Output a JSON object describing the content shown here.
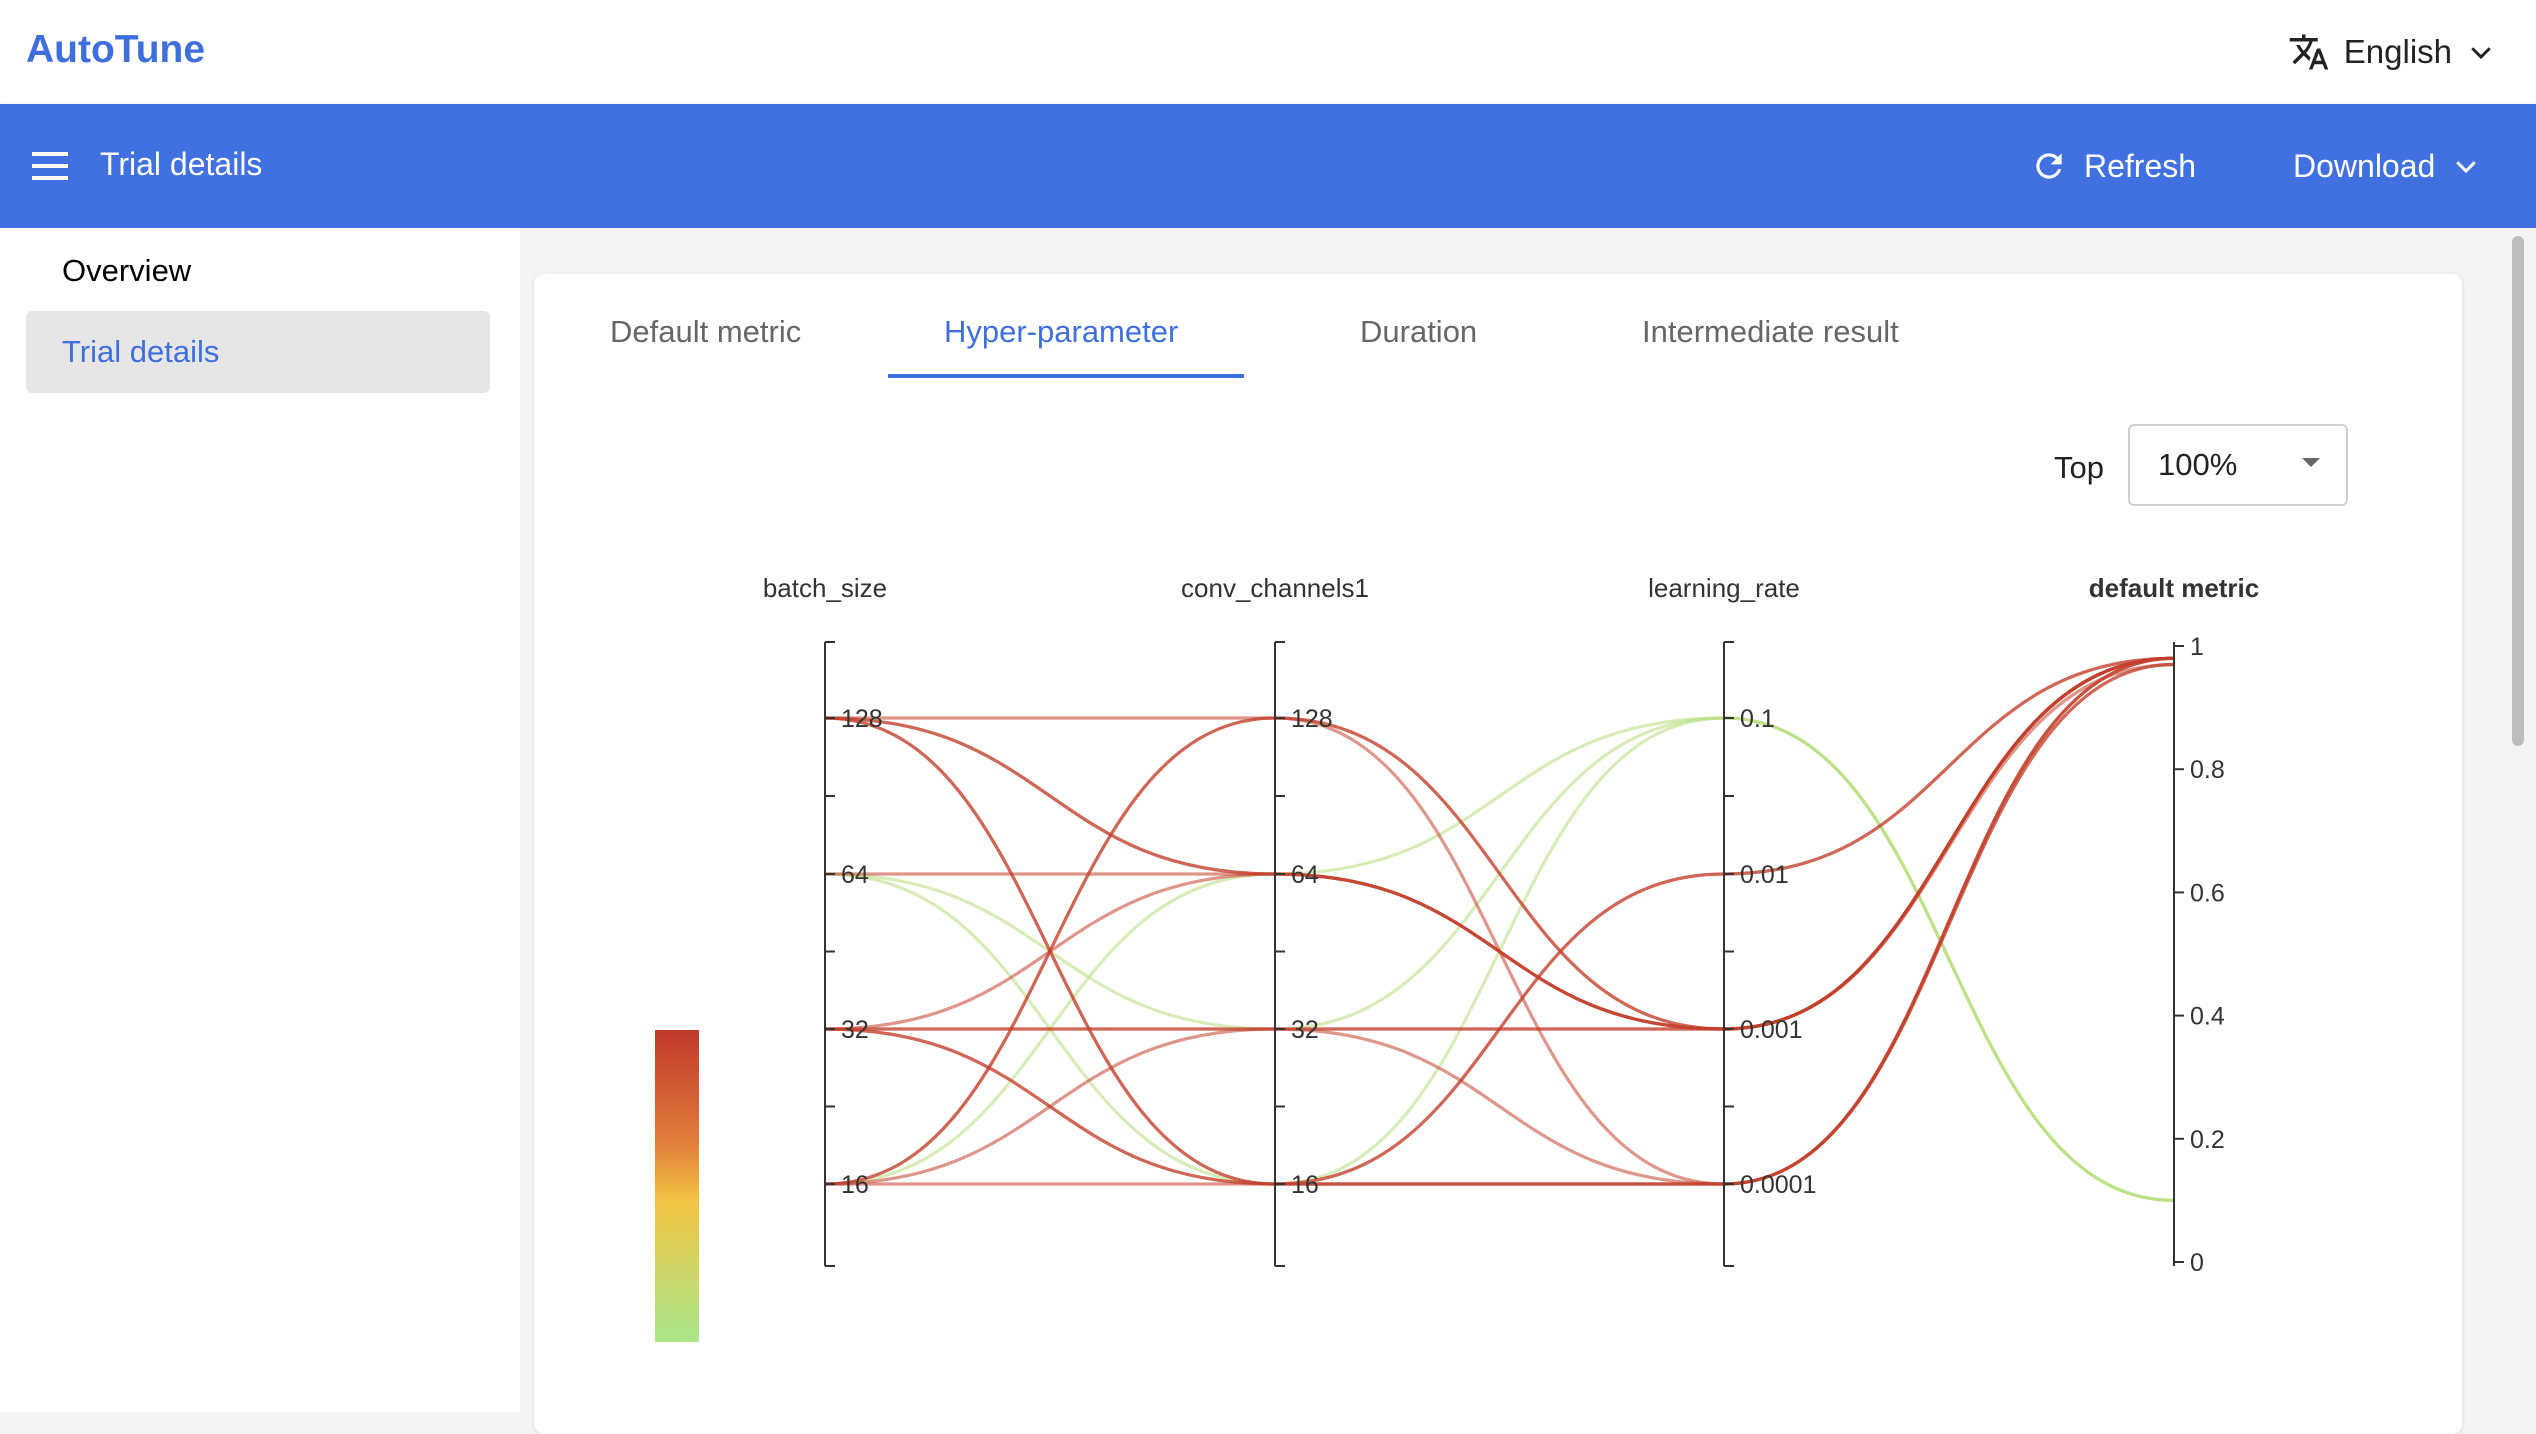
{
  "app": {
    "brand": "AutoTune"
  },
  "language": {
    "selected": "English",
    "icon": "translate-icon"
  },
  "header": {
    "title": "Trial details",
    "refresh_label": "Refresh",
    "download_label": "Download"
  },
  "sidebar": {
    "items": [
      {
        "label": "Overview"
      },
      {
        "label": "Trial details"
      }
    ]
  },
  "tabs": [
    {
      "label": "Default metric"
    },
    {
      "label": "Hyper-parameter"
    },
    {
      "label": "Duration"
    },
    {
      "label": "Intermediate result"
    }
  ],
  "top_filter": {
    "label": "Top",
    "value": "100%"
  },
  "colors": {
    "accent": "#4171e0",
    "link": "#3f6fdf",
    "high_metric": "#c0392b",
    "low_metric": "#a8e68a"
  },
  "chart_data": {
    "type": "parallel_coordinates",
    "axes": [
      {
        "name": "batch_size",
        "ticks": [
          "128",
          "64",
          "32",
          "16"
        ]
      },
      {
        "name": "conv_channels1",
        "ticks": [
          "128",
          "64",
          "32",
          "16"
        ]
      },
      {
        "name": "learning_rate",
        "ticks": [
          "0.1",
          "0.01",
          "0.001",
          "0.0001"
        ]
      },
      {
        "name": "default metric",
        "ticks": [
          "1",
          "0.8",
          "0.6",
          "0.4",
          "0.2",
          "0"
        ],
        "range": [
          0,
          1
        ]
      }
    ],
    "color_scale": {
      "metric": "default metric",
      "low": "#a8e68a",
      "mid": "#f3c443",
      "high": "#c0392b"
    },
    "trials": [
      {
        "batch_size": "128",
        "conv_channels1": "128",
        "learning_rate": "0.001",
        "default_metric": 0.98
      },
      {
        "batch_size": "128",
        "conv_channels1": "64",
        "learning_rate": "0.001",
        "default_metric": 0.98
      },
      {
        "batch_size": "128",
        "conv_channels1": "64",
        "learning_rate": "0.001",
        "default_metric": 0.97
      },
      {
        "batch_size": "128",
        "conv_channels1": "16",
        "learning_rate": "0.01",
        "default_metric": 0.98
      },
      {
        "batch_size": "128",
        "conv_channels1": "16",
        "learning_rate": "0.0001",
        "default_metric": 0.98
      },
      {
        "batch_size": "64",
        "conv_channels1": "64",
        "learning_rate": "0.001",
        "default_metric": 0.98
      },
      {
        "batch_size": "64",
        "conv_channels1": "32",
        "learning_rate": "0.1",
        "default_metric": 0.1
      },
      {
        "batch_size": "64",
        "conv_channels1": "16",
        "learning_rate": "0.1",
        "default_metric": 0.1
      },
      {
        "batch_size": "32",
        "conv_channels1": "64",
        "learning_rate": "0.001",
        "default_metric": 0.98
      },
      {
        "batch_size": "32",
        "conv_channels1": "32",
        "learning_rate": "0.001",
        "default_metric": 0.98
      },
      {
        "batch_size": "32",
        "conv_channels1": "32",
        "learning_rate": "0.0001",
        "default_metric": 0.97
      },
      {
        "batch_size": "32",
        "conv_channels1": "16",
        "learning_rate": "0.01",
        "default_metric": 0.98
      },
      {
        "batch_size": "32",
        "conv_channels1": "16",
        "learning_rate": "0.0001",
        "default_metric": 0.98
      },
      {
        "batch_size": "16",
        "conv_channels1": "128",
        "learning_rate": "0.001",
        "default_metric": 0.98
      },
      {
        "batch_size": "16",
        "conv_channels1": "128",
        "learning_rate": "0.0001",
        "default_metric": 0.97
      },
      {
        "batch_size": "16",
        "conv_channels1": "64",
        "learning_rate": "0.1",
        "default_metric": 0.1
      },
      {
        "batch_size": "16",
        "conv_channels1": "32",
        "learning_rate": "0.001",
        "default_metric": 0.98
      },
      {
        "batch_size": "16",
        "conv_channels1": "16",
        "learning_rate": "0.0001",
        "default_metric": 0.98
      }
    ]
  }
}
